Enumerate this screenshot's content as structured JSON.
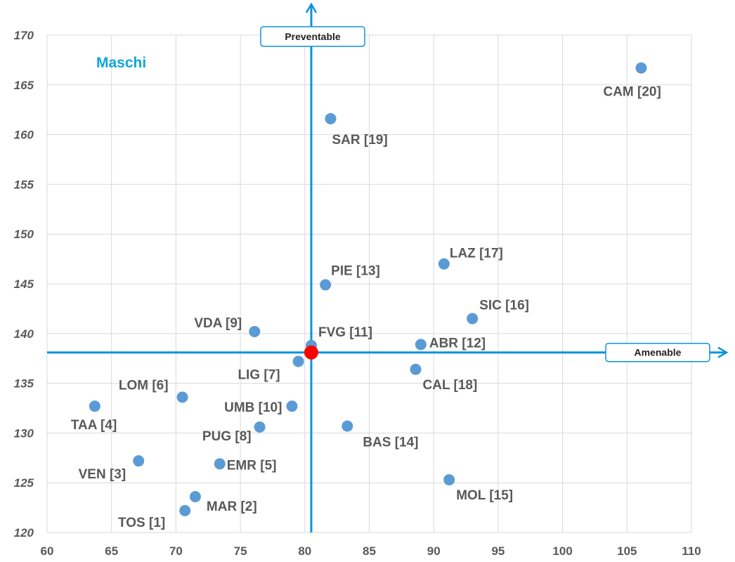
{
  "chart_data": {
    "type": "scatter",
    "title": "Maschi",
    "xlabel": "",
    "ylabel": "",
    "xlim": [
      60,
      110
    ],
    "ylim": [
      120,
      170
    ],
    "x_ticks": [
      60,
      65,
      70,
      75,
      80,
      85,
      90,
      95,
      100,
      105,
      110
    ],
    "y_ticks": [
      120,
      125,
      130,
      135,
      140,
      145,
      150,
      155,
      160,
      165,
      170
    ],
    "grid": true,
    "reference_point": {
      "x": 80.5,
      "y": 138.1,
      "color": "#ff0000"
    },
    "reference_lines": {
      "vertical": {
        "x": 80.5,
        "label": "Preventable"
      },
      "horizontal": {
        "y": 138.1,
        "label": "Amenable"
      }
    },
    "points": [
      {
        "label": "TOS [1]",
        "x": 70.7,
        "y": 122.2
      },
      {
        "label": "MAR [2]",
        "x": 71.5,
        "y": 123.6
      },
      {
        "label": "VEN [3]",
        "x": 67.1,
        "y": 127.2
      },
      {
        "label": "TAA [4]",
        "x": 63.7,
        "y": 132.7
      },
      {
        "label": "EMR [5]",
        "x": 73.4,
        "y": 126.9
      },
      {
        "label": "LOM [6]",
        "x": 70.5,
        "y": 133.6
      },
      {
        "label": "LIG [7]",
        "x": 79.5,
        "y": 137.2
      },
      {
        "label": "PUG [8]",
        "x": 76.5,
        "y": 130.6
      },
      {
        "label": "VDA [9]",
        "x": 76.1,
        "y": 140.2
      },
      {
        "label": "UMB [10]",
        "x": 79.0,
        "y": 132.7
      },
      {
        "label": "FVG [11]",
        "x": 80.5,
        "y": 138.8
      },
      {
        "label": "ABR [12]",
        "x": 89.0,
        "y": 138.9
      },
      {
        "label": "PIE [13]",
        "x": 81.6,
        "y": 144.9
      },
      {
        "label": "BAS [14]",
        "x": 83.3,
        "y": 130.7
      },
      {
        "label": "MOL [15]",
        "x": 91.2,
        "y": 125.3
      },
      {
        "label": "SIC [16]",
        "x": 93.0,
        "y": 141.5
      },
      {
        "label": "LAZ [17]",
        "x": 90.8,
        "y": 147.0
      },
      {
        "label": "CAL [18]",
        "x": 88.6,
        "y": 136.4
      },
      {
        "label": "SAR [19]",
        "x": 82.0,
        "y": 161.6
      },
      {
        "label": "CAM [20]",
        "x": 106.1,
        "y": 166.7
      }
    ],
    "colors": {
      "point": "#5b9bd5",
      "reference_point": "#ff0000",
      "axis_lines": "#0d93d9",
      "title": "#0ea5e0",
      "grid": "#d9d9d9"
    }
  }
}
